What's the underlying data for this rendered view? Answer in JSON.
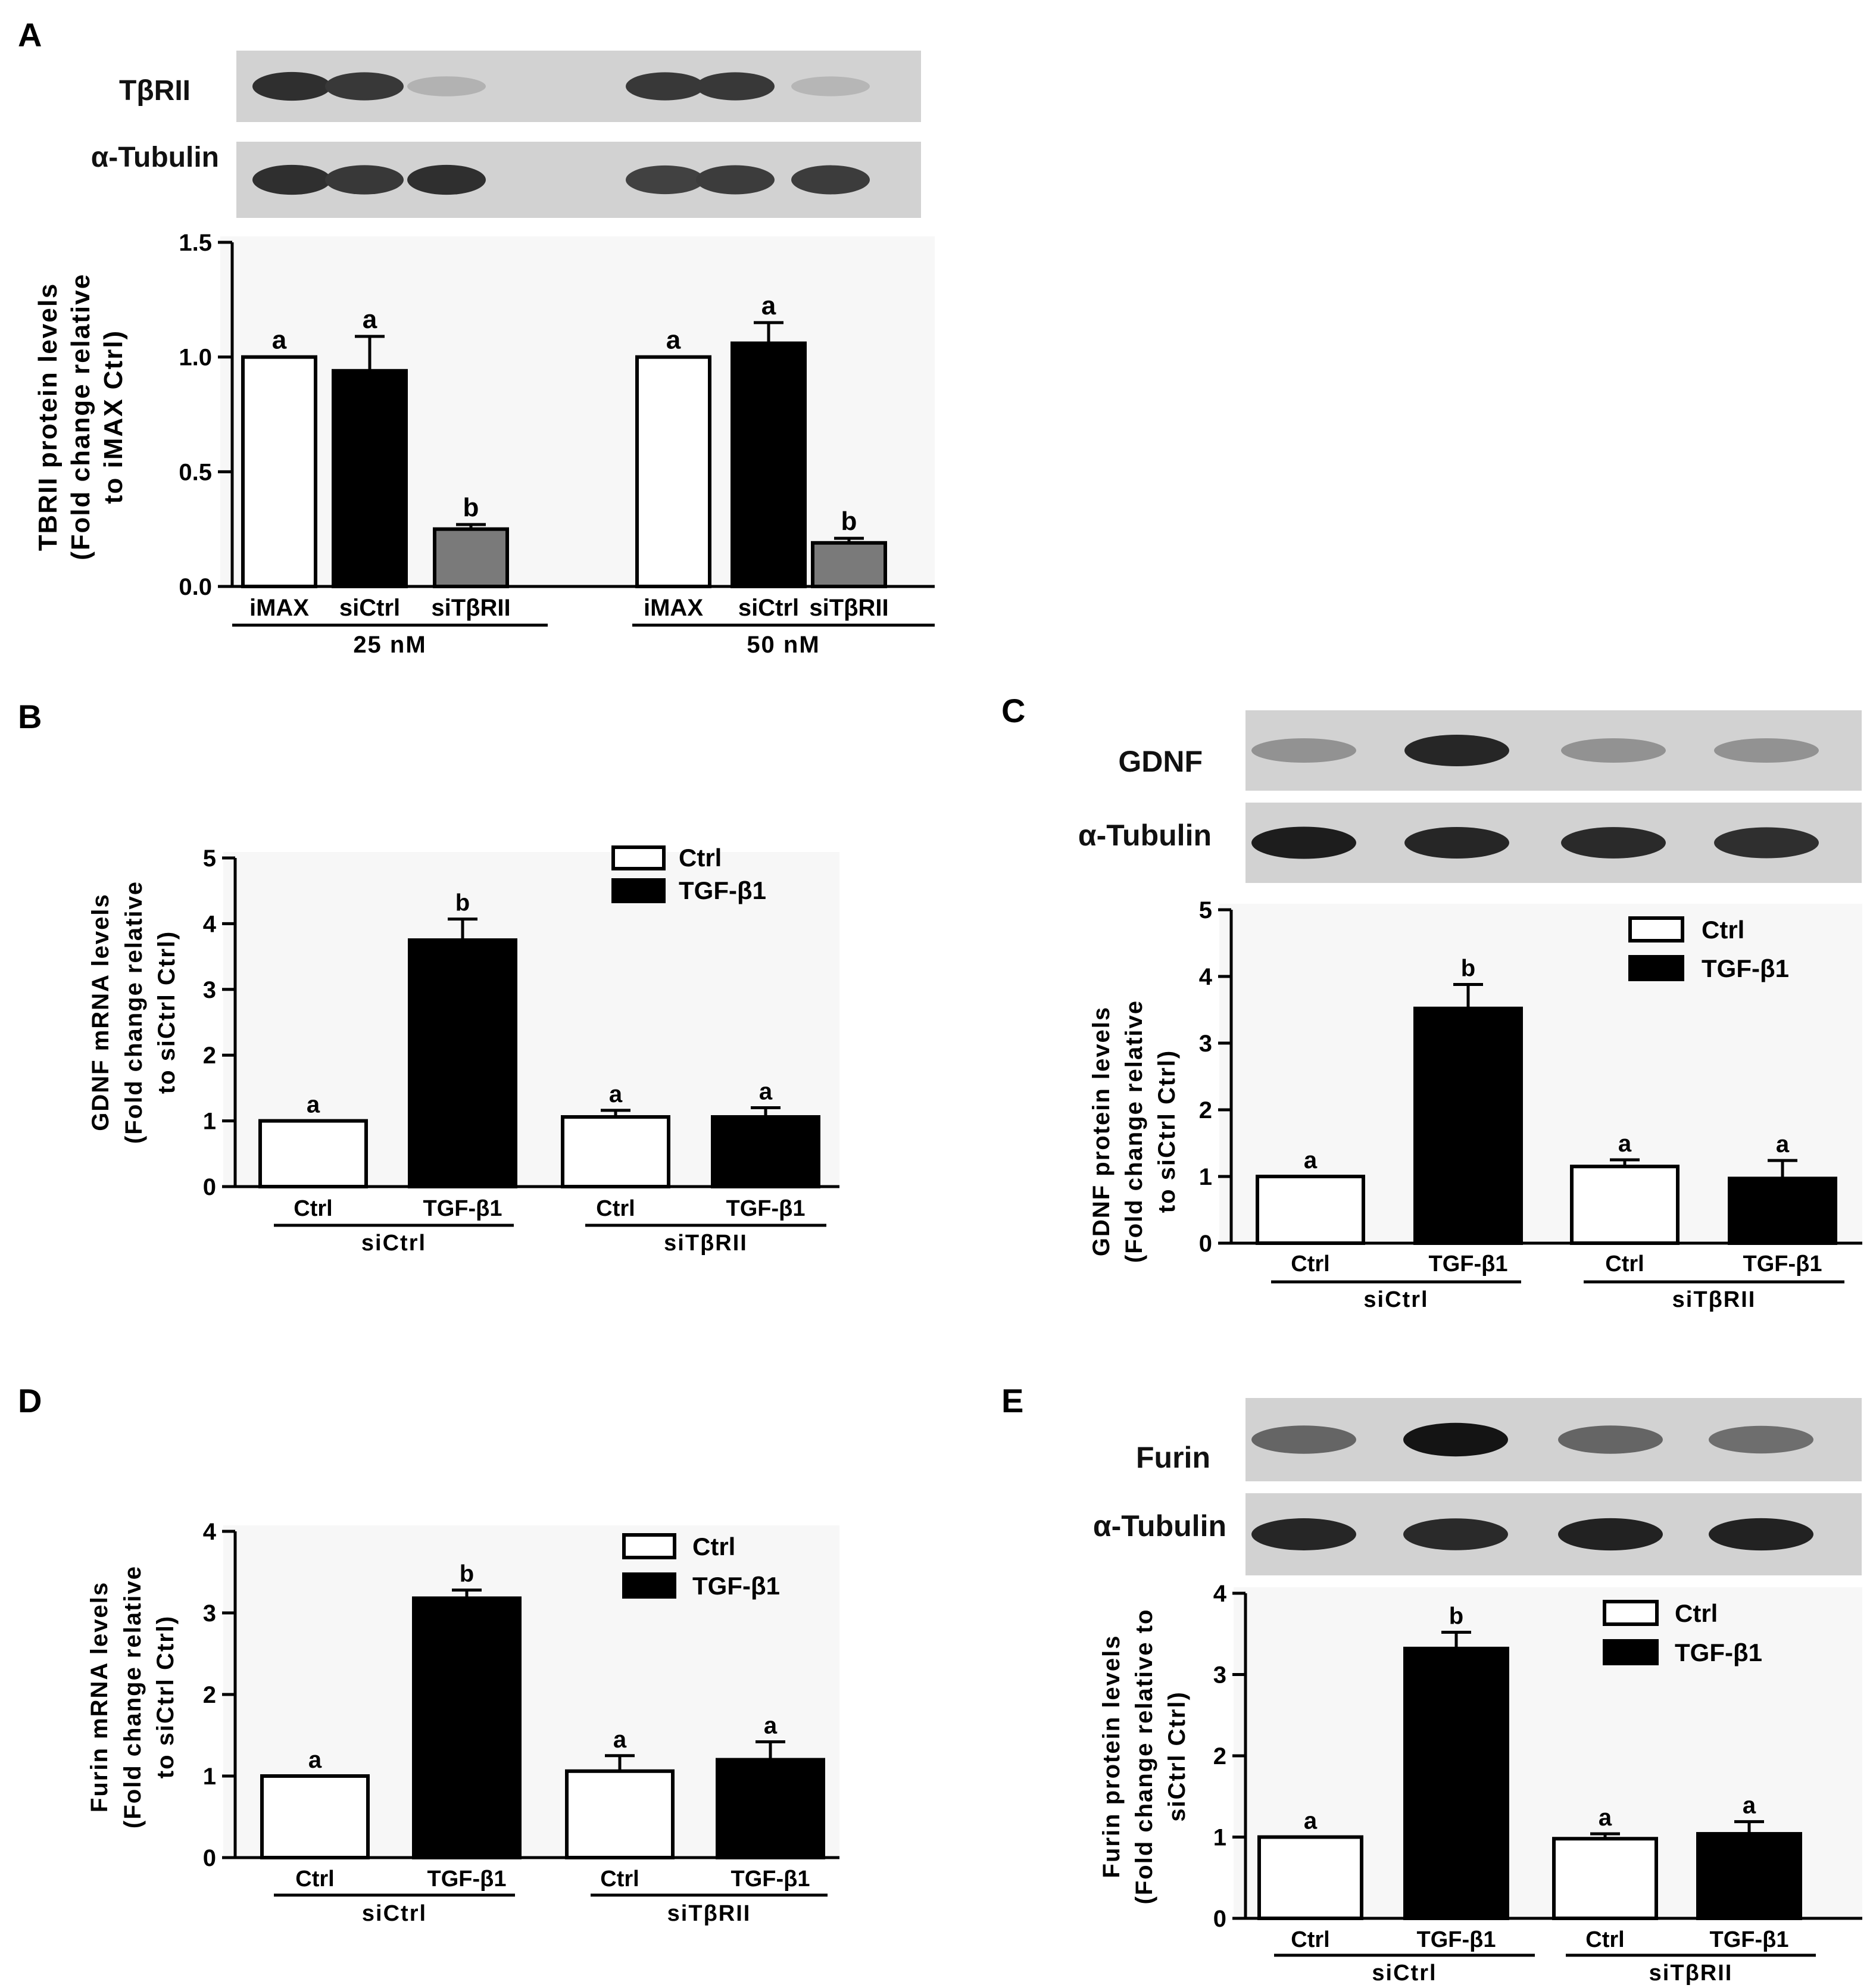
{
  "figure": {
    "panels": {
      "A": {
        "letter": "A",
        "blot": {
          "bands": [
            "TβRII",
            "α-Tubulin"
          ],
          "intensity": [
            [
              0.85,
              0.8,
              0.12,
              0,
              0.8,
              0.8,
              0.1
            ],
            [
              0.85,
              0.8,
              0.85,
              0,
              0.75,
              0.78,
              0.78
            ]
          ]
        },
        "ylabel": [
          "TBRII protein levels",
          "(Fold change relative",
          "to iMAX Ctrl)"
        ],
        "xlabels": [
          "iMAX",
          "siCtrl",
          "siTβRII",
          "iMAX",
          "siCtrl",
          "siTβRII"
        ],
        "groups": [
          "25 nM",
          "50 nM"
        ]
      },
      "B": {
        "letter": "B",
        "ylabel": [
          "GDNF mRNA levels",
          "(Fold change relative",
          "to siCtrl Ctrl)"
        ],
        "xlabels": [
          "Ctrl",
          "TGF-β1",
          "Ctrl",
          "TGF-β1"
        ],
        "groups": [
          "siCtrl",
          "siTβRII"
        ],
        "legend": [
          "Ctrl",
          "TGF-β1"
        ]
      },
      "C": {
        "letter": "C",
        "blot": {
          "bands": [
            "GDNF",
            "α-Tubulin"
          ],
          "intensity": [
            [
              0.3,
              0.9,
              0.3,
              0.3
            ],
            [
              0.95,
              0.9,
              0.88,
              0.85
            ]
          ]
        },
        "ylabel": [
          "GDNF protein levels",
          "(Fold change relative",
          "to siCtrl Ctrl)"
        ],
        "xlabels": [
          "Ctrl",
          "TGF-β1",
          "Ctrl",
          "TGF-β1"
        ],
        "groups": [
          "siCtrl",
          "siTβRII"
        ],
        "legend": [
          "Ctrl",
          "TGF-β1"
        ]
      },
      "D": {
        "letter": "D",
        "ylabel": [
          "Furin mRNA levels",
          "(Fold change relative",
          "to siCtrl Ctrl)"
        ],
        "xlabels": [
          "Ctrl",
          "TGF-β1",
          "Ctrl",
          "TGF-β1"
        ],
        "groups": [
          "siCtrl",
          "siTβRII"
        ],
        "legend": [
          "Ctrl",
          "TGF-β1"
        ]
      },
      "E": {
        "letter": "E",
        "blot": {
          "bands": [
            "Furin",
            "α-Tubulin"
          ],
          "intensity": [
            [
              0.55,
              1.0,
              0.55,
              0.5
            ],
            [
              0.9,
              0.88,
              0.92,
              0.92
            ]
          ]
        },
        "ylabel": [
          "Furin protein levels",
          "(Fold change relative to",
          "siCtrl Ctrl)"
        ],
        "xlabels": [
          "Ctrl",
          "TGF-β1",
          "Ctrl",
          "TGF-β1"
        ],
        "groups": [
          "siCtrl",
          "siTβRII"
        ],
        "legend": [
          "Ctrl",
          "TGF-β1"
        ]
      }
    }
  },
  "chart_data": [
    {
      "panel": "A",
      "type": "bar",
      "categories": [
        "iMAX",
        "siCtrl",
        "siTβRII",
        "iMAX",
        "siCtrl",
        "siTβRII"
      ],
      "groups": [
        "25 nM",
        "25 nM",
        "25 nM",
        "50 nM",
        "50 nM",
        "50 nM"
      ],
      "values": [
        1.0,
        0.94,
        0.25,
        1.0,
        1.06,
        0.19
      ],
      "errors": [
        0,
        0.15,
        0.02,
        0,
        0.09,
        0.02
      ],
      "letters": [
        "a",
        "a",
        "b",
        "a",
        "a",
        "b"
      ],
      "fills": [
        "#ffffff",
        "#000000",
        "#7a7a7a",
        "#ffffff",
        "#000000",
        "#7a7a7a"
      ],
      "ylim": [
        0,
        1.5
      ],
      "yticks": [
        "0.0",
        "0.5",
        "1.0",
        "1.5"
      ],
      "ylabel": "TBRII protein levels (Fold change relative to iMAX Ctrl)"
    },
    {
      "panel": "B",
      "type": "bar",
      "categories": [
        "Ctrl",
        "TGF-β1",
        "Ctrl",
        "TGF-β1"
      ],
      "groups": [
        "siCtrl",
        "siCtrl",
        "siTβRII",
        "siTβRII"
      ],
      "values": [
        1.0,
        3.75,
        1.06,
        1.06
      ],
      "errors": [
        0,
        0.32,
        0.1,
        0.14
      ],
      "letters": [
        "a",
        "b",
        "a",
        "a"
      ],
      "fills": [
        "#ffffff",
        "#000000",
        "#ffffff",
        "#000000"
      ],
      "ylim": [
        0,
        5
      ],
      "yticks": [
        "0",
        "1",
        "2",
        "3",
        "4",
        "5"
      ],
      "ylabel": "GDNF mRNA levels (Fold change relative to siCtrl Ctrl)",
      "legend": [
        "Ctrl",
        "TGF-β1"
      ]
    },
    {
      "panel": "C",
      "type": "bar",
      "categories": [
        "Ctrl",
        "TGF-β1",
        "Ctrl",
        "TGF-β1"
      ],
      "groups": [
        "siCtrl",
        "siCtrl",
        "siTβRII",
        "siTβRII"
      ],
      "values": [
        1.0,
        3.52,
        1.15,
        0.97
      ],
      "errors": [
        0,
        0.36,
        0.1,
        0.27
      ],
      "letters": [
        "a",
        "b",
        "a",
        "a"
      ],
      "fills": [
        "#ffffff",
        "#000000",
        "#ffffff",
        "#000000"
      ],
      "ylim": [
        0,
        5
      ],
      "yticks": [
        "0",
        "1",
        "2",
        "3",
        "4",
        "5"
      ],
      "ylabel": "GDNF protein levels (Fold change relative to siCtrl Ctrl)",
      "legend": [
        "Ctrl",
        "TGF-β1"
      ]
    },
    {
      "panel": "D",
      "type": "bar",
      "categories": [
        "Ctrl",
        "TGF-β1",
        "Ctrl",
        "TGF-β1"
      ],
      "groups": [
        "siCtrl",
        "siCtrl",
        "siTβRII",
        "siTβRII"
      ],
      "values": [
        1.0,
        3.18,
        1.06,
        1.2
      ],
      "errors": [
        0,
        0.1,
        0.19,
        0.22
      ],
      "letters": [
        "a",
        "b",
        "a",
        "a"
      ],
      "fills": [
        "#ffffff",
        "#000000",
        "#ffffff",
        "#000000"
      ],
      "ylim": [
        0,
        4
      ],
      "yticks": [
        "0",
        "1",
        "2",
        "3",
        "4"
      ],
      "ylabel": "Furin mRNA levels (Fold change relative to siCtrl Ctrl)",
      "legend": [
        "Ctrl",
        "TGF-β1"
      ]
    },
    {
      "panel": "E",
      "type": "bar",
      "categories": [
        "Ctrl",
        "TGF-β1",
        "Ctrl",
        "TGF-β1"
      ],
      "groups": [
        "siCtrl",
        "siCtrl",
        "siTβRII",
        "siTβRII"
      ],
      "values": [
        1.0,
        3.32,
        0.98,
        1.04
      ],
      "errors": [
        0,
        0.2,
        0.06,
        0.15
      ],
      "letters": [
        "a",
        "b",
        "a",
        "a"
      ],
      "fills": [
        "#ffffff",
        "#000000",
        "#ffffff",
        "#000000"
      ],
      "ylim": [
        0,
        4
      ],
      "yticks": [
        "0",
        "1",
        "2",
        "3",
        "4"
      ],
      "ylabel": "Furin protein levels (Fold change relative to siCtrl Ctrl)",
      "legend": [
        "Ctrl",
        "TGF-β1"
      ]
    }
  ]
}
